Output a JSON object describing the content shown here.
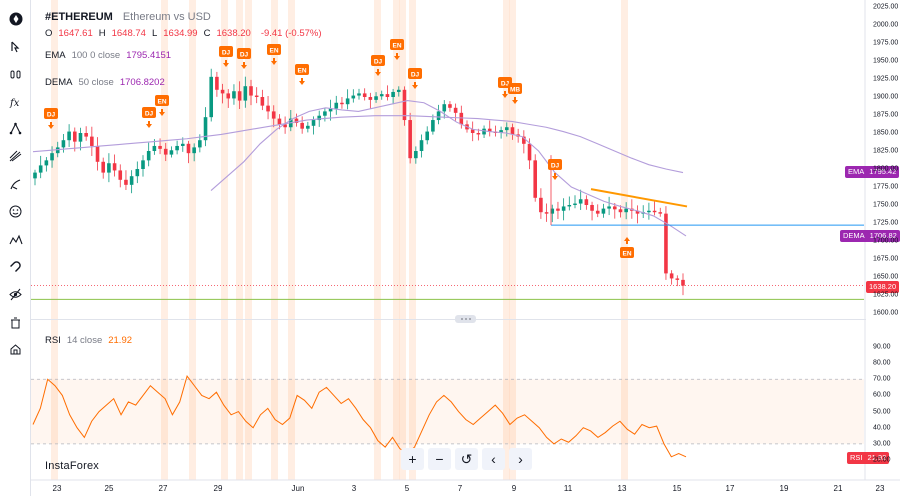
{
  "symbol": {
    "ticker": "#ETHEREUM",
    "description": "Ethereum vs USD"
  },
  "ohlc": {
    "o_label": "O",
    "o_value": "1647.61",
    "h_label": "H",
    "h_value": "1648.74",
    "l_label": "L",
    "l_value": "1634.99",
    "c_label": "C",
    "c_value": "1638.20",
    "change": "-9.41 (-0.57%)"
  },
  "ema": {
    "name": "EMA",
    "params": "100  0  close",
    "value": "1795.4151",
    "tag": "EMA",
    "tag_value": "1795.42"
  },
  "dema": {
    "name": "DEMA",
    "params": "50  close",
    "value": "1706.8202",
    "tag": "DEMA",
    "tag_value": "1706.82"
  },
  "last_price_tag": "1638.20",
  "rsi": {
    "name": "RSI",
    "params": "14  close",
    "value": "21.92",
    "tag": "RSI",
    "tag_value": "21.92"
  },
  "brand": "InstaForex",
  "zoom_controls": {
    "plus": "+",
    "minus": "−",
    "reset": "↺",
    "left": "‹",
    "right": "›"
  },
  "toolbar_icons": [
    "logo-icon",
    "cursor-icon",
    "trend-line-icon",
    "fib-icon",
    "pattern-icon",
    "brush-icon",
    "text-icon",
    "emoji-icon",
    "ruler-icon",
    "magnet-icon",
    "lock-icon",
    "eye-icon",
    "trash-icon",
    "home-icon"
  ],
  "colors": {
    "up": "#089981",
    "down": "#f23645",
    "ema": "#b39ddb",
    "trend": "#ff9800",
    "hline": "#2196f3",
    "event": "#ff6d00",
    "rsi": "#ff6d00",
    "green_line": "#8bc34a"
  },
  "price_axis": {
    "ticks": [
      "2025.00",
      "2000.00",
      "1975.00",
      "1950.00",
      "1925.00",
      "1900.00",
      "1875.00",
      "1850.00",
      "1825.00",
      "1800.00",
      "1775.00",
      "1750.00",
      "1725.00",
      "1700.00",
      "1675.00",
      "1650.00",
      "1625.00",
      "1600.00"
    ]
  },
  "rsi_axis": {
    "ticks": [
      "90.00",
      "80.00",
      "70.00",
      "60.00",
      "50.00",
      "40.00",
      "30.00",
      "20.00"
    ]
  },
  "time_axis": {
    "labels": [
      "23",
      "25",
      "27",
      "29",
      "Jun",
      "3",
      "5",
      "7",
      "9",
      "11",
      "13",
      "15",
      "17",
      "19",
      "21",
      "23"
    ]
  },
  "events": [
    {
      "label": "DJ",
      "arrow": "down"
    },
    {
      "label": "DJ",
      "arrow": "down"
    },
    {
      "label": "EN",
      "arrow": "down"
    },
    {
      "label": "DJ",
      "arrow": "down"
    },
    {
      "label": "DJ",
      "arrow": "down"
    },
    {
      "label": "EN",
      "arrow": "down"
    },
    {
      "label": "EN",
      "arrow": "down"
    },
    {
      "label": "DJ",
      "arrow": "down"
    },
    {
      "label": "EN",
      "arrow": "down"
    },
    {
      "label": "DJ",
      "arrow": "down"
    },
    {
      "label": "DJ",
      "arrow": "down"
    },
    {
      "label": "MB",
      "arrow": "down"
    },
    {
      "label": "DJ",
      "arrow": "down"
    },
    {
      "label": "EN",
      "arrow": "up"
    }
  ],
  "chart_data": {
    "type": "candlestick",
    "series_name": "ETHUSD",
    "ylim": [
      1595,
      2025
    ],
    "x_labels": [
      "23",
      "25",
      "27",
      "29",
      "Jun",
      "3",
      "5",
      "7",
      "9",
      "11",
      "13",
      "15",
      "17",
      "19",
      "21",
      "23"
    ],
    "candles_close": [
      1795,
      1805,
      1812,
      1822,
      1830,
      1840,
      1852,
      1838,
      1850,
      1845,
      1832,
      1810,
      1795,
      1808,
      1798,
      1785,
      1778,
      1790,
      1800,
      1812,
      1825,
      1832,
      1828,
      1820,
      1826,
      1832,
      1835,
      1822,
      1830,
      1840,
      1872,
      1928,
      1910,
      1905,
      1898,
      1908,
      1895,
      1915,
      1902,
      1900,
      1888,
      1880,
      1870,
      1862,
      1858,
      1870,
      1864,
      1856,
      1860,
      1868,
      1874,
      1880,
      1884,
      1892,
      1890,
      1898,
      1902,
      1905,
      1900,
      1896,
      1901,
      1904,
      1900,
      1907,
      1910,
      1868,
      1815,
      1825,
      1840,
      1852,
      1868,
      1880,
      1890,
      1885,
      1878,
      1862,
      1855,
      1850,
      1848,
      1856,
      1852,
      1850,
      1854,
      1858,
      1848,
      1845,
      1835,
      1812,
      1760,
      1740,
      1738,
      1745,
      1742,
      1748,
      1750,
      1752,
      1758,
      1750,
      1742,
      1738,
      1745,
      1748,
      1744,
      1740,
      1745,
      1742,
      1738,
      1740,
      1742,
      1740,
      1738,
      1655,
      1648,
      1646,
      1638
    ],
    "ema_100": [
      1824,
      1826,
      1828,
      1830,
      1832,
      1834,
      1836,
      1838,
      1840,
      1842,
      1845,
      1848,
      1852,
      1856,
      1860,
      1864,
      1868,
      1870,
      1872,
      1873,
      1874,
      1874,
      1874,
      1873,
      1872,
      1871,
      1870,
      1868,
      1866,
      1862,
      1858,
      1852,
      1845,
      1835,
      1825,
      1815,
      1806,
      1800,
      1795
    ],
    "dema_50": [
      1770,
      1790,
      1810,
      1835,
      1855,
      1870,
      1880,
      1885,
      1882,
      1880,
      1885,
      1890,
      1895,
      1892,
      1880,
      1865,
      1855,
      1852,
      1850,
      1845,
      1825,
      1795,
      1775,
      1765,
      1755,
      1748,
      1742,
      1735,
      1722,
      1707
    ],
    "trendline": {
      "from": 1772,
      "to": 1748
    },
    "horizontal_level": 1722,
    "green_level": 1619,
    "current_price": 1638.2,
    "rsi": {
      "ylim": [
        15,
        95
      ],
      "overbought": 70,
      "oversold": 30,
      "values": [
        42,
        52,
        70,
        66,
        60,
        48,
        40,
        34,
        44,
        50,
        54,
        58,
        48,
        56,
        54,
        60,
        66,
        62,
        58,
        48,
        56,
        72,
        66,
        60,
        58,
        62,
        54,
        48,
        50,
        44,
        40,
        48,
        52,
        45,
        42,
        46,
        60,
        57,
        52,
        62,
        65,
        60,
        55,
        58,
        52,
        45,
        40,
        32,
        28,
        34,
        27,
        24,
        28,
        38,
        48,
        56,
        60,
        56,
        50,
        45,
        42,
        46,
        50,
        54,
        49,
        42,
        46,
        48,
        44,
        40,
        34,
        30,
        33,
        31,
        35,
        40,
        38,
        34,
        37,
        41,
        44,
        39,
        36,
        42,
        40,
        41,
        30,
        22,
        24,
        22
      ]
    }
  }
}
